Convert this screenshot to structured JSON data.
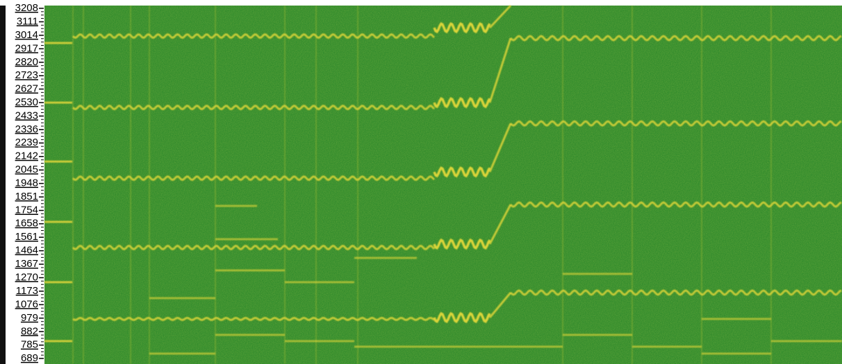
{
  "chart_data": {
    "type": "spectrogram",
    "ylim": [
      689,
      3208
    ],
    "yticks": [
      3208,
      3111,
      3014,
      2917,
      2820,
      2723,
      2627,
      2530,
      2433,
      2336,
      2239,
      2142,
      2045,
      1948,
      1851,
      1754,
      1658,
      1561,
      1464,
      1367,
      1270,
      1173,
      1076,
      979,
      882,
      785,
      689
    ],
    "color": "#e4d83a",
    "background": "#2f8a2c"
  }
}
